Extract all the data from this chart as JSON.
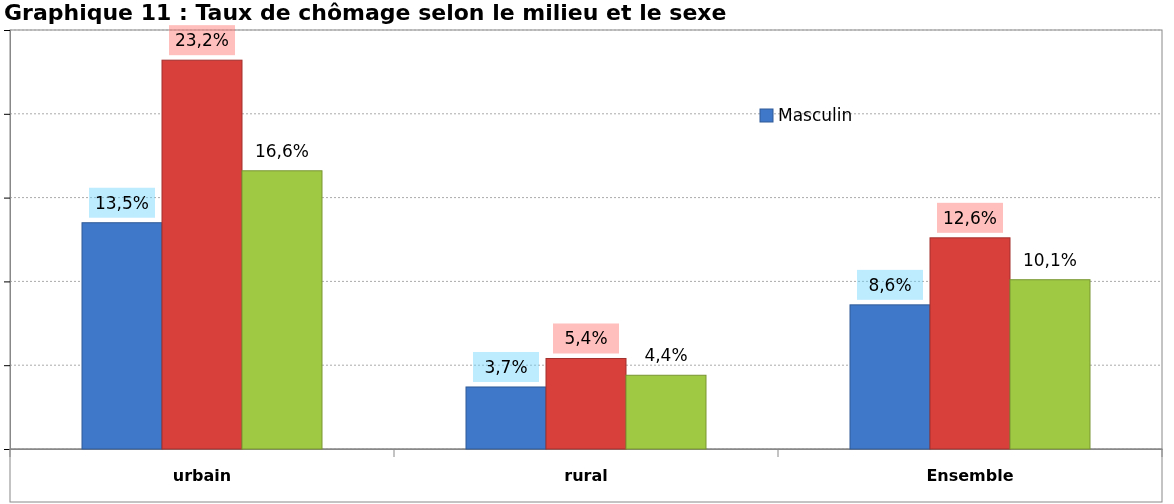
{
  "chart_data": {
    "type": "bar",
    "title": "Graphique 11 : Taux de chômage selon le milieu et le sexe",
    "categories": [
      "urbain",
      "rural",
      "Ensemble"
    ],
    "series": [
      {
        "name": "Masculin",
        "color": "#3f78c8",
        "values": [
          13.5,
          3.7,
          8.6
        ],
        "value_labels": [
          "13,5%",
          "3,7%",
          "8,6%"
        ]
      },
      {
        "color": "#d8403c",
        "values": [
          23.2,
          5.4,
          12.6
        ],
        "value_labels": [
          "23,2%",
          "5,4%",
          "12,6%"
        ]
      },
      {
        "color": "#9fc843",
        "values": [
          16.6,
          4.4,
          10.1
        ],
        "value_labels": [
          "16,6%",
          "4,4%",
          "10,1%"
        ]
      }
    ],
    "ylim": [
      0,
      25
    ],
    "yticks": [
      {
        "value": 0,
        "label": null
      },
      {
        "value": 5,
        "label": null
      },
      {
        "value": 10,
        "label": null
      },
      {
        "value": 15,
        "label": null
      },
      {
        "value": 20,
        "label": null
      },
      {
        "value": 25,
        "label": null
      }
    ],
    "tick_labels": "x",
    "grid": "y",
    "legend": "top"
  }
}
